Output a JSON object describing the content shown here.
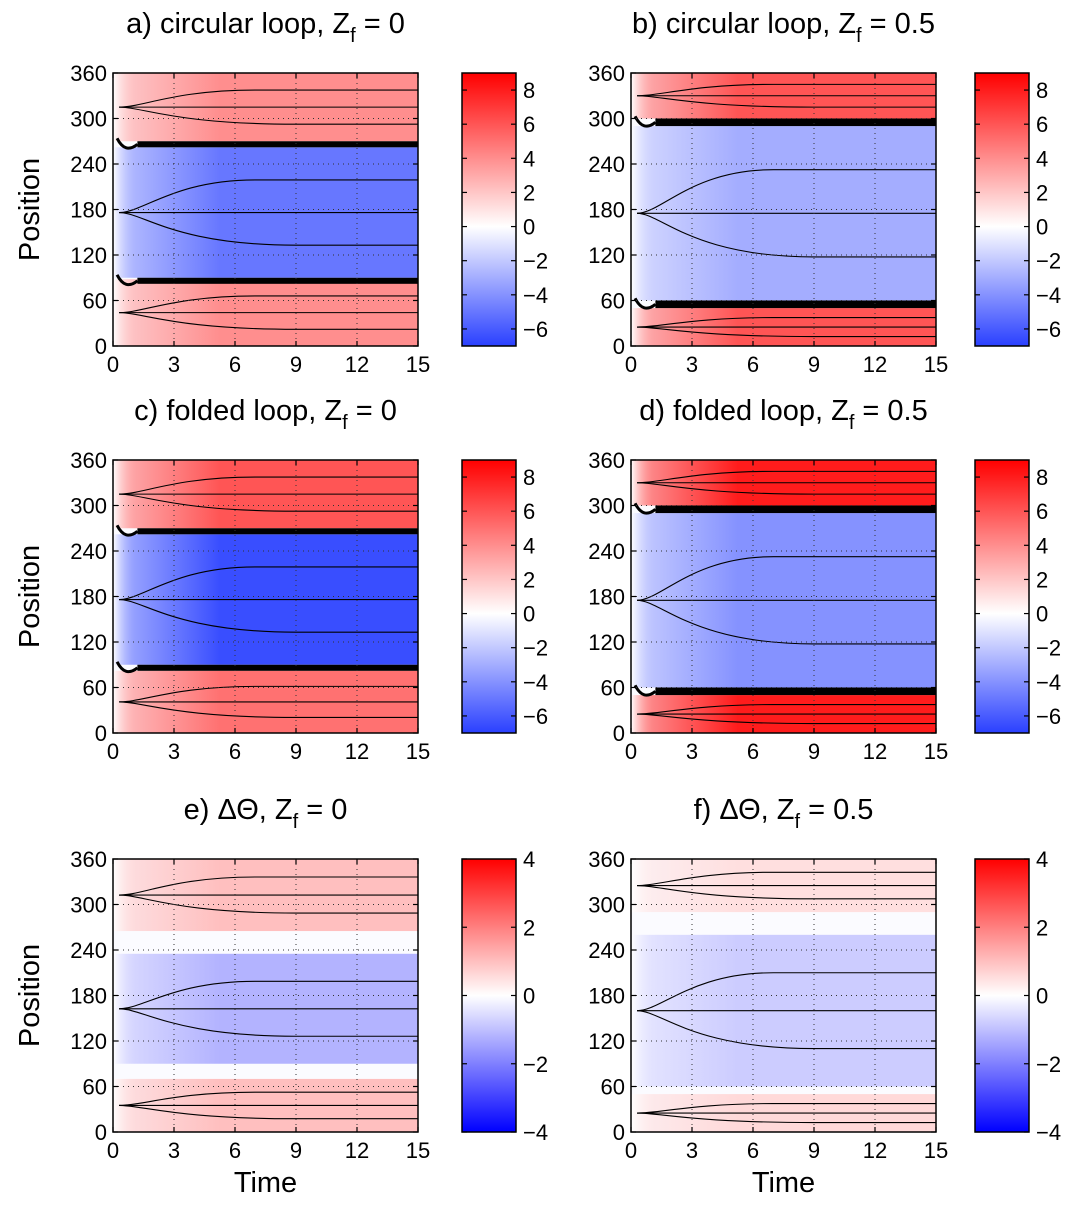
{
  "chart_data": [
    {
      "type": "heatmap",
      "panel": "a",
      "title_prefix": "a) circular loop, ",
      "title_var": "Z",
      "title_sub": "f",
      "title_suffix": " = 0",
      "xlabel": "",
      "ylabel": "Position",
      "xlim": [
        0,
        15
      ],
      "ylim": [
        0,
        360
      ],
      "xticks": [
        0,
        3,
        6,
        9,
        12,
        15
      ],
      "yticks": [
        0,
        60,
        120,
        180,
        240,
        300,
        360
      ],
      "grid": true,
      "colorbar": {
        "range": [
          -7,
          9
        ],
        "ticks": [
          "8",
          "6",
          "4",
          "2",
          "0",
          "−2",
          "−4",
          "−6"
        ],
        "tick_values": [
          8,
          6,
          4,
          2,
          0,
          -2,
          -4,
          -6
        ]
      },
      "regions": [
        {
          "y": [
            270,
            360
          ],
          "value": 4
        },
        {
          "y": [
            90,
            262
          ],
          "value": -5
        },
        {
          "y": [
            0,
            88
          ],
          "value": 4
        }
      ],
      "fronts": [
        {
          "y": [
            262,
            270
          ]
        },
        {
          "y": [
            82,
            90
          ]
        }
      ]
    },
    {
      "type": "heatmap",
      "panel": "b",
      "title_prefix": "b) circular loop, ",
      "title_var": "Z",
      "title_sub": "f",
      "title_suffix": " = 0.5",
      "xlabel": "",
      "ylabel": "",
      "xlim": [
        0,
        15
      ],
      "ylim": [
        0,
        360
      ],
      "xticks": [
        0,
        3,
        6,
        9,
        12,
        15
      ],
      "yticks": [
        0,
        60,
        120,
        180,
        240,
        300,
        360
      ],
      "grid": true,
      "colorbar": {
        "range": [
          -7,
          9
        ],
        "ticks": [
          "8",
          "6",
          "4",
          "2",
          "0",
          "−2",
          "−4",
          "−6"
        ],
        "tick_values": [
          8,
          6,
          4,
          2,
          0,
          -2,
          -4,
          -6
        ]
      },
      "regions": [
        {
          "y": [
            300,
            360
          ],
          "value": 6
        },
        {
          "y": [
            60,
            290
          ],
          "value": -3
        },
        {
          "y": [
            0,
            50
          ],
          "value": 6
        }
      ],
      "fronts": [
        {
          "y": [
            290,
            300
          ]
        },
        {
          "y": [
            50,
            60
          ]
        }
      ]
    },
    {
      "type": "heatmap",
      "panel": "c",
      "title_prefix": "c) folded loop, ",
      "title_var": "Z",
      "title_sub": "f",
      "title_suffix": " = 0",
      "xlabel": "",
      "ylabel": "Position",
      "xlim": [
        0,
        15
      ],
      "ylim": [
        0,
        360
      ],
      "xticks": [
        0,
        3,
        6,
        9,
        12,
        15
      ],
      "yticks": [
        0,
        60,
        120,
        180,
        240,
        300,
        360
      ],
      "grid": true,
      "colorbar": {
        "range": [
          -7,
          9
        ],
        "ticks": [
          "8",
          "6",
          "4",
          "2",
          "0",
          "−2",
          "−4",
          "−6"
        ],
        "tick_values": [
          8,
          6,
          4,
          2,
          0,
          -2,
          -4,
          -6
        ]
      },
      "regions": [
        {
          "y": [
            270,
            360
          ],
          "value": 6
        },
        {
          "y": [
            90,
            262
          ],
          "value": -6.5
        },
        {
          "y": [
            0,
            82
          ],
          "value": 5
        }
      ],
      "fronts": [
        {
          "y": [
            262,
            270
          ]
        },
        {
          "y": [
            82,
            90
          ]
        }
      ]
    },
    {
      "type": "heatmap",
      "panel": "d",
      "title_prefix": "d) folded loop, ",
      "title_var": "Z",
      "title_sub": "f",
      "title_suffix": " = 0.5",
      "xlabel": "",
      "ylabel": "",
      "xlim": [
        0,
        15
      ],
      "ylim": [
        0,
        360
      ],
      "xticks": [
        0,
        3,
        6,
        9,
        12,
        15
      ],
      "yticks": [
        0,
        60,
        120,
        180,
        240,
        300,
        360
      ],
      "grid": true,
      "colorbar": {
        "range": [
          -7,
          9
        ],
        "ticks": [
          "8",
          "6",
          "4",
          "2",
          "0",
          "−2",
          "−4",
          "−6"
        ],
        "tick_values": [
          8,
          6,
          4,
          2,
          0,
          -2,
          -4,
          -6
        ]
      },
      "regions": [
        {
          "y": [
            300,
            360
          ],
          "value": 8
        },
        {
          "y": [
            60,
            290
          ],
          "value": -4
        },
        {
          "y": [
            0,
            50
          ],
          "value": 8
        }
      ],
      "fronts": [
        {
          "y": [
            290,
            300
          ]
        },
        {
          "y": [
            50,
            60
          ]
        }
      ]
    },
    {
      "type": "heatmap",
      "panel": "e",
      "title_prefix": "e) ΔΘ, ",
      "title_var": "Z",
      "title_sub": "f",
      "title_suffix": " = 0",
      "xlabel": "Time",
      "ylabel": "Position",
      "xlim": [
        0,
        15
      ],
      "ylim": [
        0,
        360
      ],
      "xticks": [
        0,
        3,
        6,
        9,
        12,
        15
      ],
      "yticks": [
        0,
        60,
        120,
        180,
        240,
        300,
        360
      ],
      "grid": true,
      "colorbar": {
        "range": [
          -4,
          4
        ],
        "ticks": [
          "4",
          "2",
          "0",
          "−2",
          "−4"
        ],
        "tick_values": [
          4,
          2,
          0,
          -2,
          -4
        ]
      },
      "regions": [
        {
          "y": [
            265,
            360
          ],
          "value": 1
        },
        {
          "y": [
            90,
            235
          ],
          "value": -1.2
        },
        {
          "y": [
            0,
            70
          ],
          "value": 1
        }
      ],
      "fronts": []
    },
    {
      "type": "heatmap",
      "panel": "f",
      "title_prefix": "f) ΔΘ, ",
      "title_var": "Z",
      "title_sub": "f",
      "title_suffix": " = 0.5",
      "xlabel": "Time",
      "ylabel": "",
      "xlim": [
        0,
        15
      ],
      "ylim": [
        0,
        360
      ],
      "xticks": [
        0,
        3,
        6,
        9,
        12,
        15
      ],
      "yticks": [
        0,
        60,
        120,
        180,
        240,
        300,
        360
      ],
      "grid": true,
      "colorbar": {
        "range": [
          -4,
          4
        ],
        "ticks": [
          "4",
          "2",
          "0",
          "−2",
          "−4"
        ],
        "tick_values": [
          4,
          2,
          0,
          -2,
          -4
        ]
      },
      "regions": [
        {
          "y": [
            290,
            360
          ],
          "value": 0.5
        },
        {
          "y": [
            60,
            260
          ],
          "value": -0.8
        },
        {
          "y": [
            0,
            50
          ],
          "value": 0.6
        }
      ],
      "fronts": []
    }
  ]
}
